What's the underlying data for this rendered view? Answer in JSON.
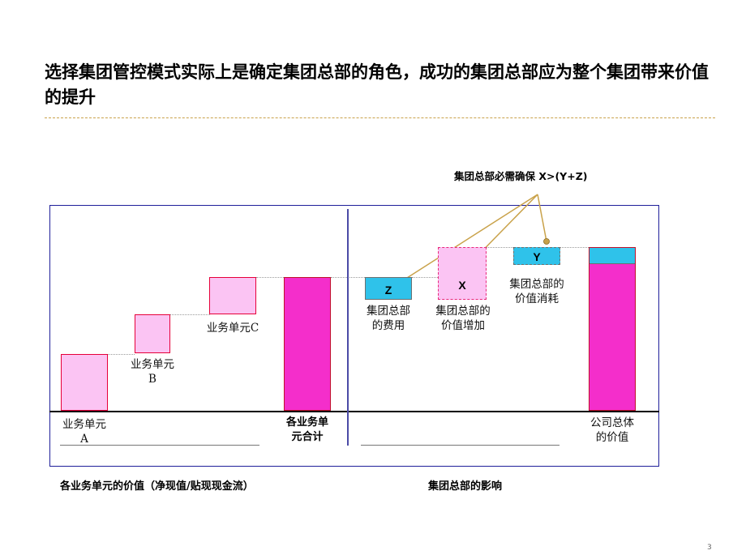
{
  "title": "选择集团管控模式实际上是确定集团总部的角色，成功的集团总部应为整个集团带来价值的提升",
  "callout": "集团总部必需确保 X>(Y+Z)",
  "bars": {
    "unit_a_label": [
      "业务单元",
      "A"
    ],
    "unit_b_label": [
      "业务单元",
      "B"
    ],
    "unit_c_label": "业务单元C",
    "units_total_label": [
      "各业务单",
      "元合计"
    ],
    "hq_cost_letter": "Z",
    "hq_cost_label": [
      "集团总部",
      "的费用"
    ],
    "hq_added_letter": "X",
    "hq_added_label": [
      "集团总部的",
      "价值增加"
    ],
    "hq_consume_letter": "Y",
    "hq_consume_label": [
      "集团总部的",
      "价值消耗"
    ],
    "company_total_label": [
      "公司总体",
      "的价值"
    ]
  },
  "footer": {
    "left": "各业务单元的价值（净现值/贴现现金流）",
    "right": "集团总部的影响"
  },
  "page_number": "3",
  "colors": {
    "light_pink": "#fbc4f3",
    "hot_pink": "#f42ecb",
    "cyan": "#2fc2ea",
    "frame_blue": "#1f1f9a",
    "gold_rule": "#c9a24a"
  }
}
